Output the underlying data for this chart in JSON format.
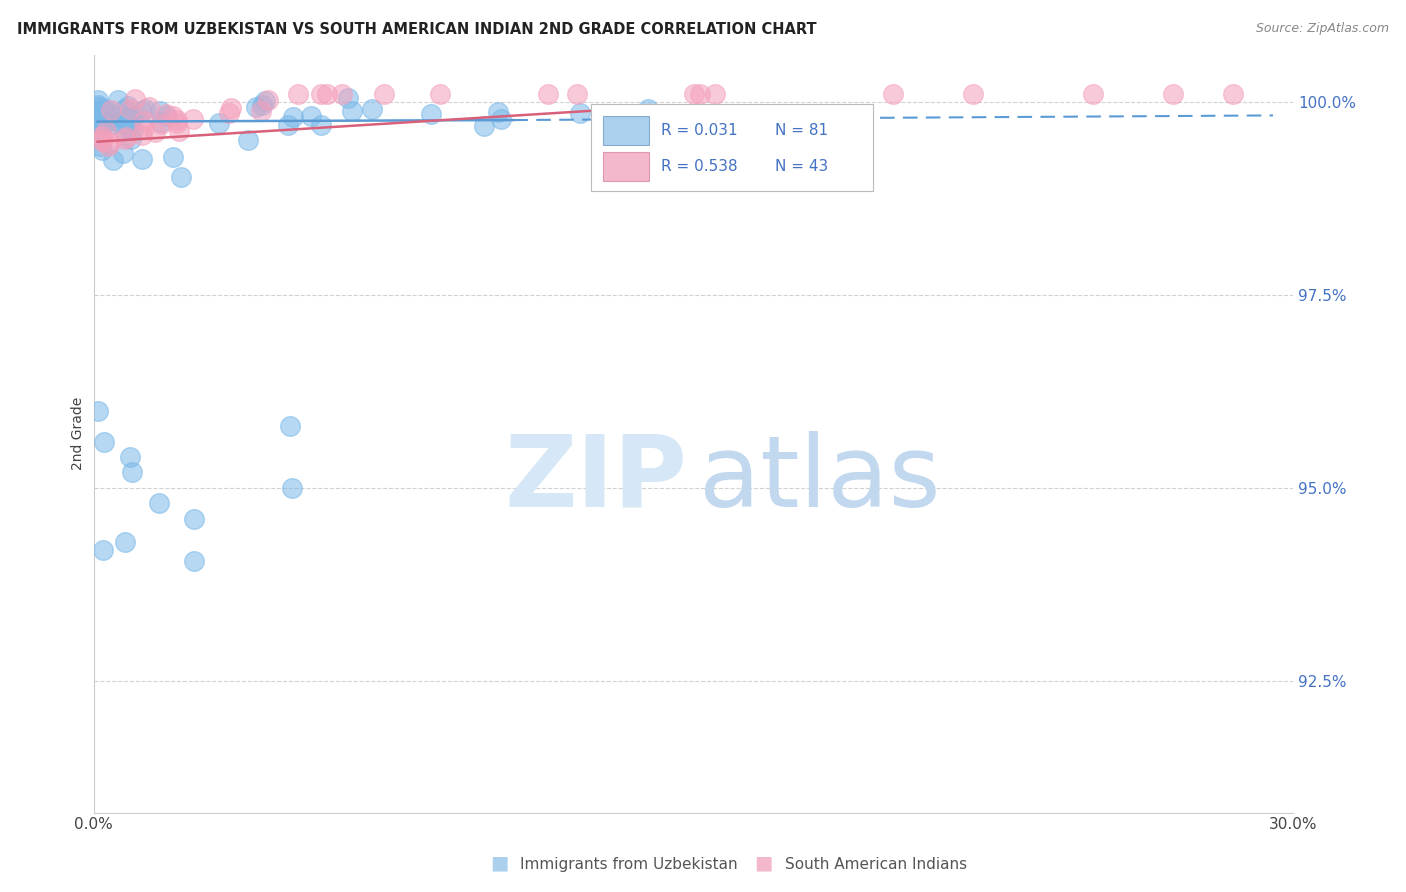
{
  "title": "IMMIGRANTS FROM UZBEKISTAN VS SOUTH AMERICAN INDIAN 2ND GRADE CORRELATION CHART",
  "source": "Source: ZipAtlas.com",
  "ylabel": "2nd Grade",
  "ytick_labels": [
    "92.5%",
    "95.0%",
    "97.5%",
    "100.0%"
  ],
  "ytick_values": [
    0.925,
    0.95,
    0.975,
    1.0
  ],
  "xlim": [
    0.0,
    0.3
  ],
  "ylim": [
    0.908,
    1.006
  ],
  "scatter_blue_color": "#7ab8e8",
  "scatter_pink_color": "#f4a0bb",
  "line_blue_color": "#5b9bd5",
  "line_pink_color": "#d9607a",
  "grid_color": "#cccccc",
  "background_color": "#ffffff",
  "legend_footer_blue": "Immigrants from Uzbekistan",
  "legend_footer_pink": "South American Indians",
  "R_blue": "0.031",
  "N_blue": "81",
  "R_pink": "0.538",
  "N_pink": "43"
}
